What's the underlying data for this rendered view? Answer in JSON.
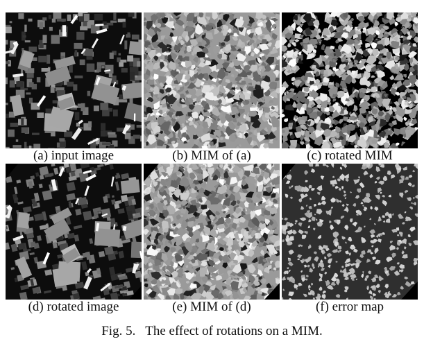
{
  "figure": {
    "caption": "Fig. 5.   The effect of rotations on a MIM.",
    "panels": [
      {
        "label": "(a) input image",
        "image": "aerial-grayscale-image"
      },
      {
        "label": "(b) MIM of (a)",
        "image": "mim-texture-map"
      },
      {
        "label": "(c) rotated MIM",
        "image": "rotated-mim-texture-map"
      },
      {
        "label": "(d) rotated image",
        "image": "rotated-aerial-image"
      },
      {
        "label": "(e) MIM of (d)",
        "image": "mim-texture-map-of-rotated"
      },
      {
        "label": "(f) error map",
        "image": "error-map"
      }
    ]
  },
  "colors": {
    "background": "#ffffff",
    "text": "#111111",
    "panel_black": "#000000",
    "error_dark": "#2f2f2f",
    "error_light": "#bdbdbd"
  }
}
